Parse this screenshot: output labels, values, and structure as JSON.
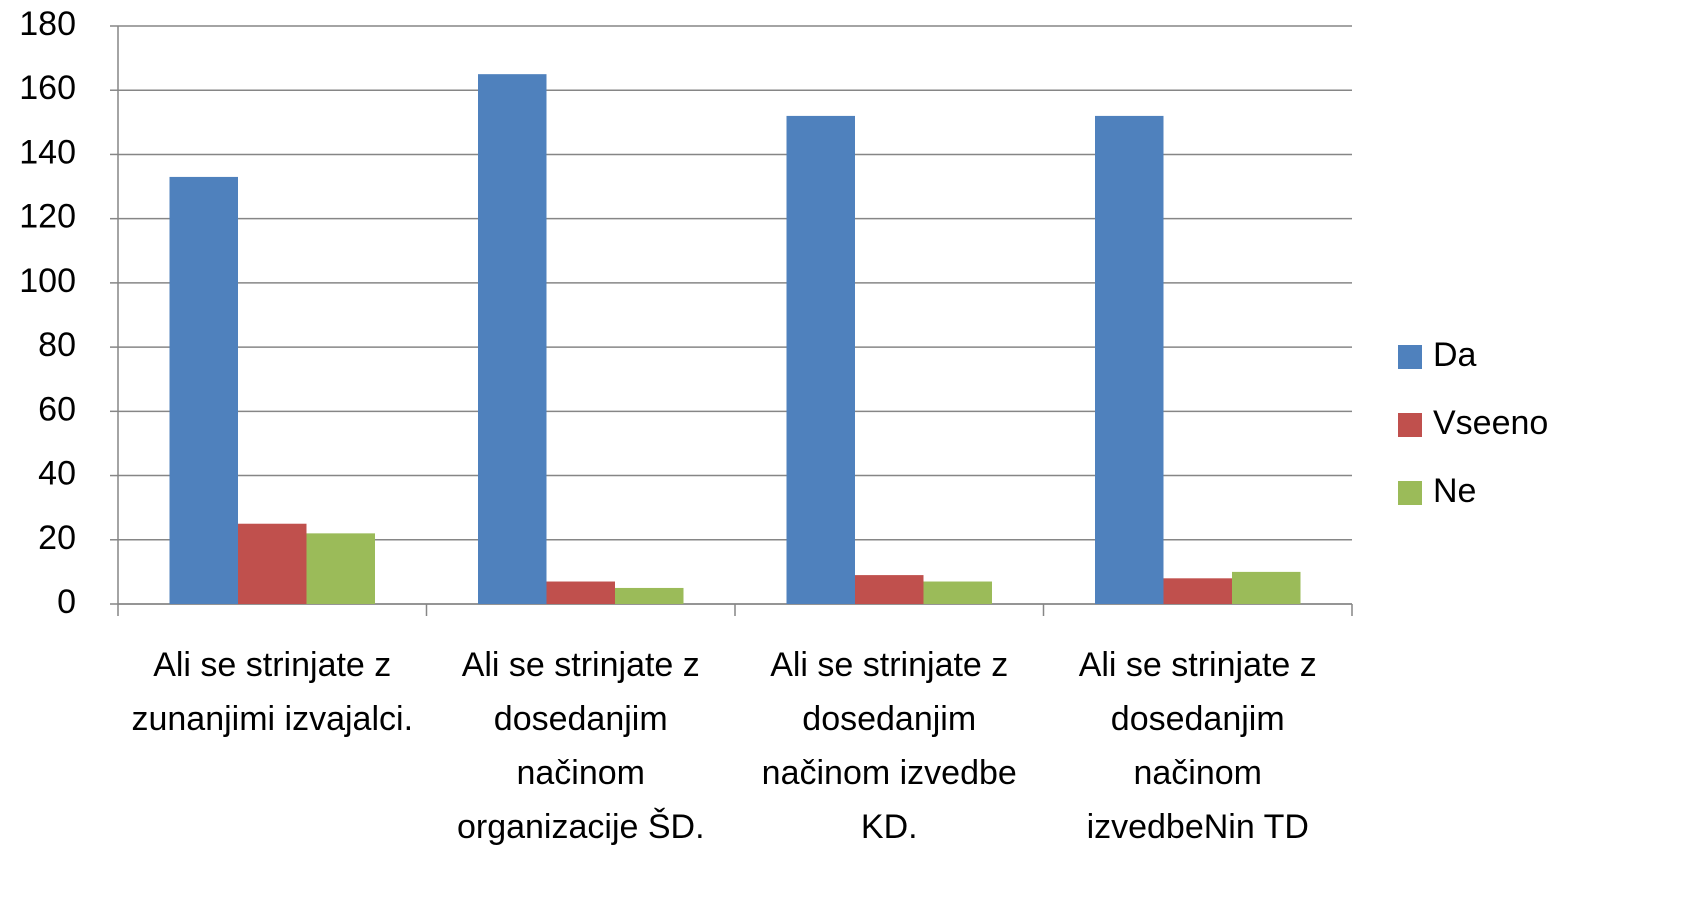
{
  "chart_data": {
    "type": "bar",
    "categories": [
      "Ali se strinjate z zunanjimi izvajalci.",
      "Ali se strinjate z dosedanjim načinom organizacije ŠD.",
      "Ali se strinjate z dosedanjim načinom izvedbe KD.",
      "Ali se strinjate z dosedanjim načinom izvedbeNin TD"
    ],
    "series": [
      {
        "name": "Da",
        "color": "#4f81bd",
        "values": [
          133,
          165,
          152,
          152
        ]
      },
      {
        "name": "Vseeno",
        "color": "#c0504d",
        "values": [
          25,
          7,
          9,
          8
        ]
      },
      {
        "name": "Ne",
        "color": "#9bbb59",
        "values": [
          22,
          5,
          7,
          10
        ]
      }
    ],
    "ylim": [
      0,
      180
    ],
    "yticks": [
      0,
      20,
      40,
      60,
      80,
      100,
      120,
      140,
      160,
      180
    ],
    "grid": true,
    "legend": "right"
  }
}
